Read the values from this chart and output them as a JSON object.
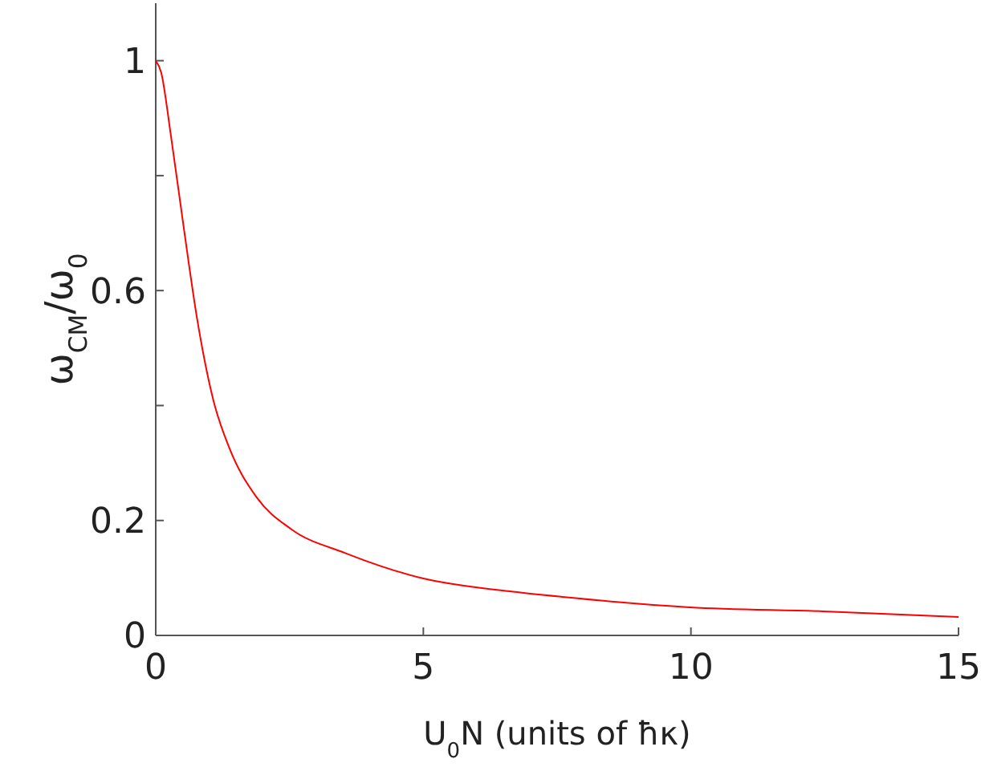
{
  "chart_data": {
    "type": "line",
    "xlabel": "U$_{0}$N (units of ħκ)",
    "ylabel": "ω$_{CM}$/ω$_{0}$",
    "x": [
      0,
      0.1,
      0.28,
      0.53,
      0.78,
      1.08,
      1.38,
      1.88,
      2.53,
      3.55,
      5,
      6.68,
      7.6,
      9.98,
      12.47,
      15
    ],
    "series": [
      {
        "color": "#ff0000",
        "values": [
          1,
          0.98,
          0.872,
          0.705,
          0.547,
          0.408,
          0.325,
          0.241,
          0.185,
          0.143,
          0.099,
          0.076,
          0.067,
          0.049,
          0.042,
          0.032
        ]
      }
    ],
    "xlim": [
      0,
      15
    ],
    "ylim": [
      0,
      1.1
    ],
    "xticks": [
      0,
      5,
      10,
      15
    ],
    "yticks": [
      0,
      0.2,
      {
        "value": 0.4,
        "label": null
      },
      0.6,
      {
        "value": 0.8,
        "label": null
      },
      1
    ],
    "marker": "none",
    "line_style": "solid"
  }
}
